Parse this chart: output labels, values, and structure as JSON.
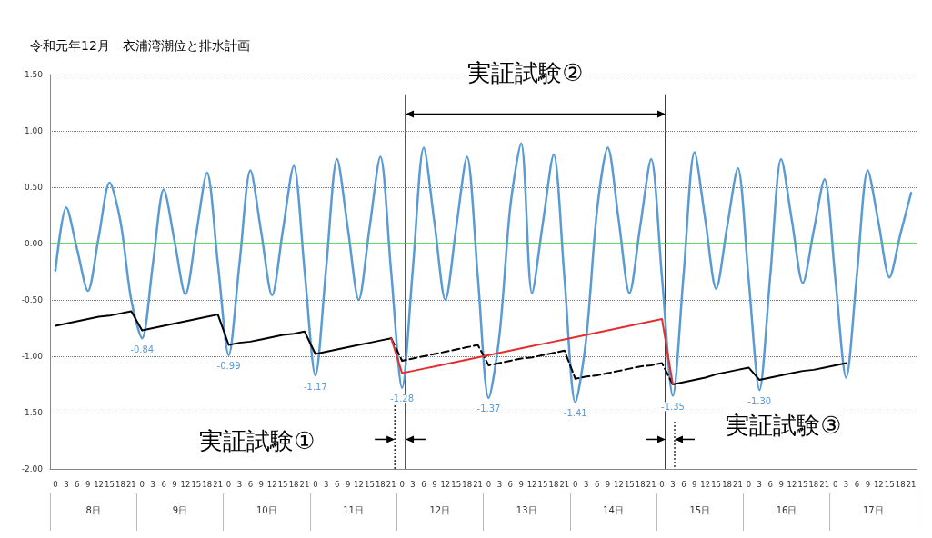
{
  "chart_data": {
    "type": "line",
    "title": "令和元年12月　衣浦湾潮位と排水計画",
    "categories": [
      "0",
      "3",
      "6",
      "9",
      "12",
      "15",
      "18",
      "21",
      "0",
      "3",
      "6",
      "9",
      "12",
      "15",
      "18",
      "21",
      "0",
      "3",
      "6",
      "9",
      "12",
      "15",
      "18",
      "21",
      "0",
      "3",
      "6",
      "9",
      "12",
      "15",
      "18",
      "21",
      "0",
      "3",
      "6",
      "9",
      "12",
      "15",
      "18",
      "21",
      "0",
      "3",
      "6",
      "9",
      "12",
      "15",
      "18",
      "21",
      "0",
      "3",
      "6",
      "9",
      "12",
      "15",
      "18",
      "21",
      "0",
      "3",
      "6",
      "9",
      "12",
      "15",
      "18",
      "21",
      "0",
      "3",
      "6",
      "9",
      "12",
      "15",
      "18",
      "21",
      "0",
      "3",
      "6",
      "9",
      "12",
      "15",
      "18",
      "21"
    ],
    "ylim": [
      -2,
      1.5
    ],
    "yticks": [
      {
        "value": -2,
        "label": "-2.00"
      },
      {
        "value": -1.5,
        "label": "-1.50"
      },
      {
        "value": -1,
        "label": "-1.00"
      },
      {
        "value": -0.5,
        "label": "-0.50"
      },
      {
        "value": 0,
        "label": "0.00"
      },
      {
        "value": 0.5,
        "label": "0.50"
      },
      {
        "value": 1,
        "label": "1.00"
      },
      {
        "value": 1.5,
        "label": "1.50"
      }
    ],
    "grid": "y",
    "marker": "none",
    "series": [
      {
        "color": "#5b9bd5",
        "values": [
          -0.24,
          0.32,
          -0.05,
          -0.42,
          0.06,
          0.54,
          0.2,
          -0.5,
          -0.84,
          -0.18,
          0.48,
          0.02,
          -0.45,
          0.09,
          0.63,
          -0.18,
          -0.99,
          -0.17,
          0.65,
          0.1,
          -0.46,
          0.12,
          0.69,
          -0.24,
          -1.17,
          -0.21,
          0.75,
          0.13,
          -0.5,
          0.14,
          0.77,
          -0.26,
          -1.28,
          -0.22,
          0.85,
          0.18,
          -0.5,
          0.14,
          0.77,
          -0.3,
          -1.37,
          -0.81,
          0.33,
          0.89,
          -0.44,
          0.18,
          0.79,
          -0.31,
          -1.41,
          -0.85,
          0.29,
          0.85,
          0.21,
          -0.44,
          0.16,
          0.75,
          -0.3,
          -1.35,
          -0.27,
          0.81,
          0.21,
          -0.4,
          0.14,
          0.67,
          -0.32,
          -1.3,
          -0.28,
          0.75,
          0.2,
          -0.35,
          0.11,
          0.57,
          -0.31,
          -1.19,
          -0.27,
          0.65,
          0.18,
          -0.3,
          0.08,
          0.45
        ],
        "value_labels": [
          null,
          null,
          null,
          null,
          null,
          null,
          null,
          null,
          "-0.84",
          null,
          null,
          null,
          null,
          null,
          null,
          null,
          "-0.99",
          null,
          null,
          null,
          null,
          null,
          null,
          null,
          "-1.17",
          null,
          null,
          null,
          null,
          null,
          null,
          null,
          "-1.28",
          null,
          null,
          null,
          null,
          null,
          null,
          null,
          "-1.37",
          null,
          null,
          null,
          null,
          null,
          null,
          null,
          "-1.41",
          null,
          null,
          null,
          null,
          null,
          null,
          null,
          null,
          "-1.35",
          null,
          null,
          null,
          null,
          null,
          null,
          null,
          "-1.30",
          null,
          null,
          null,
          null,
          null,
          null,
          null,
          null,
          null,
          null,
          null,
          null,
          null,
          null
        ]
      },
      {
        "color": "#000000",
        "values": [
          -0.73,
          -0.71,
          -0.69,
          -0.67,
          -0.65,
          -0.64,
          -0.62,
          -0.6,
          -0.77,
          -0.75,
          -0.73,
          -0.71,
          -0.69,
          -0.67,
          -0.65,
          -0.63,
          -0.9,
          -0.88,
          -0.87,
          -0.85,
          -0.83,
          -0.81,
          -0.8,
          -0.78,
          -0.98,
          -0.96,
          -0.94,
          -0.92,
          -0.9,
          -0.88,
          -0.86,
          -0.84,
          null,
          null,
          null,
          null,
          null,
          null,
          null,
          null,
          null,
          null,
          null,
          null,
          null,
          null,
          null,
          null,
          null,
          null,
          null,
          null,
          null,
          null,
          null,
          null,
          null,
          -1.25,
          -1.23,
          -1.21,
          -1.19,
          -1.16,
          -1.14,
          -1.12,
          -1.1,
          -1.21,
          -1.19,
          -1.17,
          -1.15,
          -1.13,
          -1.12,
          -1.1,
          -1.08,
          -1.06,
          null,
          null,
          null,
          null,
          null,
          null
        ]
      },
      {
        "color": "#000000",
        "line_style": "dashed",
        "values": [
          null,
          null,
          null,
          null,
          null,
          null,
          null,
          null,
          null,
          null,
          null,
          null,
          null,
          null,
          null,
          null,
          null,
          null,
          null,
          null,
          null,
          null,
          null,
          null,
          null,
          null,
          null,
          null,
          null,
          null,
          null,
          -0.84,
          -1.04,
          -1.02,
          -1.0,
          -0.98,
          -0.96,
          -0.94,
          -0.92,
          -0.9,
          -1.08,
          -1.06,
          -1.04,
          -1.02,
          -1.01,
          -0.99,
          -0.97,
          -0.95,
          -1.2,
          -1.18,
          -1.17,
          -1.15,
          -1.13,
          -1.11,
          -1.09,
          -1.08,
          -1.06,
          -1.25,
          null,
          null,
          null,
          null,
          null,
          null,
          null,
          null,
          null,
          null,
          null,
          null,
          null,
          null,
          null,
          null,
          null,
          null,
          null,
          null,
          null,
          null
        ]
      },
      {
        "color": "#e03030",
        "values": [
          null,
          null,
          null,
          null,
          null,
          null,
          null,
          null,
          null,
          null,
          null,
          null,
          null,
          null,
          null,
          null,
          null,
          null,
          null,
          null,
          null,
          null,
          null,
          null,
          null,
          null,
          null,
          null,
          null,
          null,
          null,
          -0.84,
          -1.15,
          -1.13,
          -1.11,
          -1.09,
          -1.07,
          -1.05,
          -1.03,
          -1.01,
          -0.99,
          -0.97,
          -0.95,
          -0.93,
          -0.91,
          -0.89,
          -0.87,
          -0.85,
          -0.83,
          -0.81,
          -0.79,
          -0.77,
          -0.75,
          -0.73,
          -0.71,
          -0.69,
          -0.67,
          -1.25,
          null,
          null,
          null,
          null,
          null,
          null,
          null,
          null,
          null,
          null,
          null,
          null,
          null,
          null,
          null,
          null,
          null,
          null,
          null,
          null,
          null,
          null
        ]
      }
    ],
    "ref_lines": [
      {
        "axis": "y",
        "value": 0,
        "color": "#33cc33"
      }
    ],
    "annotations": [
      "実証試験①",
      "実証試験②",
      "実証試験③",
      "8日",
      "9日",
      "10日",
      "11日",
      "12日",
      "13日",
      "14日",
      "15日",
      "16日",
      "17日"
    ]
  }
}
